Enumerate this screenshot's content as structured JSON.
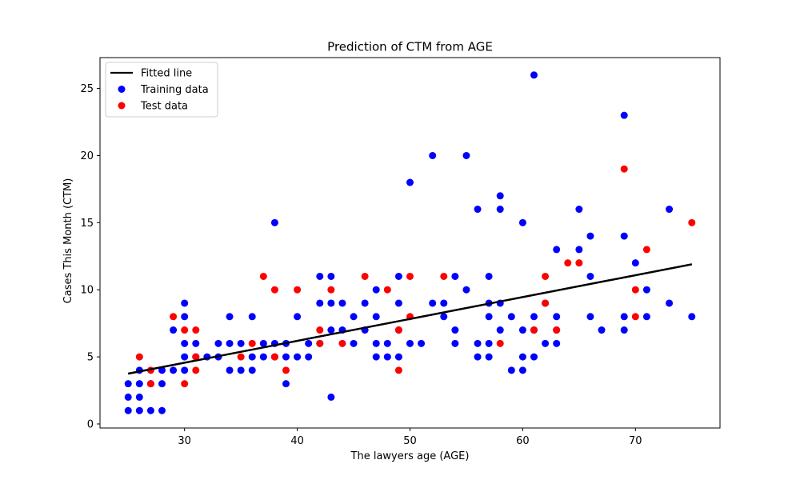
{
  "chart_data": {
    "type": "scatter",
    "title": "Prediction of CTM from AGE",
    "xlabel": "The lawyers age (AGE)",
    "ylabel": "Cases This Month (CTM)",
    "xlim": [
      22.5,
      77.5
    ],
    "ylim": [
      -0.3,
      27.3
    ],
    "xticks": [
      30,
      40,
      50,
      60,
      70
    ],
    "yticks": [
      0,
      5,
      10,
      15,
      20,
      25
    ],
    "grid": false,
    "legend_position": "top-left",
    "series": [
      {
        "name": "Training data",
        "kind": "scatter",
        "color": "#0000ff",
        "points": [
          [
            25,
            1
          ],
          [
            25,
            2
          ],
          [
            25,
            3
          ],
          [
            26,
            1
          ],
          [
            26,
            2
          ],
          [
            26,
            3
          ],
          [
            26,
            4
          ],
          [
            27,
            1
          ],
          [
            27,
            3
          ],
          [
            28,
            1
          ],
          [
            28,
            3
          ],
          [
            28,
            4
          ],
          [
            29,
            4
          ],
          [
            29,
            7
          ],
          [
            30,
            4
          ],
          [
            30,
            5
          ],
          [
            30,
            6
          ],
          [
            30,
            8
          ],
          [
            30,
            9
          ],
          [
            31,
            5
          ],
          [
            31,
            6
          ],
          [
            32,
            5
          ],
          [
            33,
            5
          ],
          [
            33,
            6
          ],
          [
            34,
            4
          ],
          [
            34,
            6
          ],
          [
            34,
            8
          ],
          [
            35,
            4
          ],
          [
            35,
            6
          ],
          [
            36,
            4
          ],
          [
            36,
            5
          ],
          [
            36,
            8
          ],
          [
            37,
            5
          ],
          [
            37,
            6
          ],
          [
            38,
            5
          ],
          [
            38,
            6
          ],
          [
            38,
            15
          ],
          [
            39,
            3
          ],
          [
            39,
            5
          ],
          [
            39,
            6
          ],
          [
            40,
            5
          ],
          [
            40,
            8
          ],
          [
            41,
            5
          ],
          [
            41,
            6
          ],
          [
            42,
            6
          ],
          [
            42,
            9
          ],
          [
            42,
            11
          ],
          [
            43,
            2
          ],
          [
            43,
            7
          ],
          [
            43,
            9
          ],
          [
            43,
            11
          ],
          [
            44,
            7
          ],
          [
            44,
            9
          ],
          [
            45,
            6
          ],
          [
            45,
            8
          ],
          [
            46,
            7
          ],
          [
            46,
            9
          ],
          [
            47,
            5
          ],
          [
            47,
            6
          ],
          [
            47,
            8
          ],
          [
            47,
            10
          ],
          [
            48,
            5
          ],
          [
            48,
            6
          ],
          [
            49,
            5
          ],
          [
            49,
            7
          ],
          [
            49,
            9
          ],
          [
            49,
            11
          ],
          [
            50,
            6
          ],
          [
            50,
            18
          ],
          [
            51,
            6
          ],
          [
            52,
            9
          ],
          [
            52,
            20
          ],
          [
            53,
            8
          ],
          [
            53,
            9
          ],
          [
            54,
            6
          ],
          [
            54,
            7
          ],
          [
            54,
            11
          ],
          [
            55,
            10
          ],
          [
            55,
            20
          ],
          [
            56,
            5
          ],
          [
            56,
            6
          ],
          [
            56,
            16
          ],
          [
            57,
            5
          ],
          [
            57,
            6
          ],
          [
            57,
            8
          ],
          [
            57,
            9
          ],
          [
            57,
            11
          ],
          [
            58,
            7
          ],
          [
            58,
            9
          ],
          [
            58,
            16
          ],
          [
            58,
            17
          ],
          [
            59,
            4
          ],
          [
            59,
            8
          ],
          [
            60,
            4
          ],
          [
            60,
            5
          ],
          [
            60,
            7
          ],
          [
            60,
            15
          ],
          [
            61,
            5
          ],
          [
            61,
            7
          ],
          [
            61,
            8
          ],
          [
            61,
            26
          ],
          [
            62,
            6
          ],
          [
            62,
            9
          ],
          [
            63,
            6
          ],
          [
            63,
            7
          ],
          [
            63,
            8
          ],
          [
            63,
            13
          ],
          [
            65,
            13
          ],
          [
            65,
            16
          ],
          [
            66,
            8
          ],
          [
            66,
            11
          ],
          [
            66,
            14
          ],
          [
            67,
            7
          ],
          [
            69,
            7
          ],
          [
            69,
            8
          ],
          [
            69,
            14
          ],
          [
            69,
            23
          ],
          [
            70,
            12
          ],
          [
            71,
            8
          ],
          [
            71,
            10
          ],
          [
            73,
            9
          ],
          [
            73,
            16
          ],
          [
            75,
            8
          ]
        ]
      },
      {
        "name": "Test data",
        "kind": "scatter",
        "color": "#ff0000",
        "points": [
          [
            26,
            5
          ],
          [
            27,
            3
          ],
          [
            27,
            4
          ],
          [
            29,
            8
          ],
          [
            30,
            3
          ],
          [
            30,
            7
          ],
          [
            31,
            4
          ],
          [
            31,
            5
          ],
          [
            31,
            7
          ],
          [
            35,
            5
          ],
          [
            36,
            6
          ],
          [
            37,
            11
          ],
          [
            38,
            5
          ],
          [
            38,
            10
          ],
          [
            39,
            4
          ],
          [
            40,
            10
          ],
          [
            42,
            6
          ],
          [
            42,
            7
          ],
          [
            43,
            10
          ],
          [
            44,
            6
          ],
          [
            46,
            11
          ],
          [
            48,
            10
          ],
          [
            49,
            4
          ],
          [
            49,
            7
          ],
          [
            50,
            8
          ],
          [
            50,
            11
          ],
          [
            53,
            11
          ],
          [
            58,
            6
          ],
          [
            61,
            7
          ],
          [
            62,
            9
          ],
          [
            62,
            11
          ],
          [
            63,
            7
          ],
          [
            64,
            12
          ],
          [
            65,
            12
          ],
          [
            69,
            19
          ],
          [
            70,
            8
          ],
          [
            70,
            10
          ],
          [
            71,
            13
          ],
          [
            75,
            15
          ]
        ]
      },
      {
        "name": "Fitted line",
        "kind": "line",
        "color": "#000000",
        "points": [
          [
            25,
            3.75
          ],
          [
            75,
            11.9
          ]
        ]
      }
    ],
    "legend_order": [
      "Fitted line",
      "Training data",
      "Test data"
    ]
  }
}
